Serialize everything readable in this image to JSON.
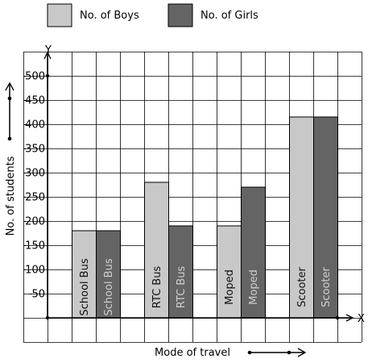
{
  "colors": {
    "boys": "#c8c8c8",
    "girls": "#646464",
    "grid": "#000000",
    "background": "#ffffff"
  },
  "chart_data": {
    "type": "bar",
    "title": "",
    "xlabel": "Mode of travel",
    "ylabel": "No. of students",
    "x_axis_letter": "X",
    "y_axis_letter": "Y",
    "ylim": [
      -50,
      550
    ],
    "grid": true,
    "legend_position": "top-left",
    "y_ticks": [
      {
        "value": 50,
        "label": "50"
      },
      {
        "value": 100,
        "label": "100"
      },
      {
        "value": 150,
        "label": "150"
      },
      {
        "value": 200,
        "label": "200"
      },
      {
        "value": 250,
        "label": "250"
      },
      {
        "value": 300,
        "label": "300"
      },
      {
        "value": 350,
        "label": "350"
      },
      {
        "value": 400,
        "label": "400"
      },
      {
        "value": 450,
        "label": "450"
      },
      {
        "value": 500,
        "label": "500"
      }
    ],
    "categories": [
      "School Bus",
      "RTC Bus",
      "Moped",
      "Scooter"
    ],
    "series": [
      {
        "name": "No. of Boys",
        "values": [
          180,
          280,
          190,
          415
        ]
      },
      {
        "name": "No. of Girls",
        "values": [
          180,
          190,
          270,
          415
        ]
      }
    ]
  }
}
